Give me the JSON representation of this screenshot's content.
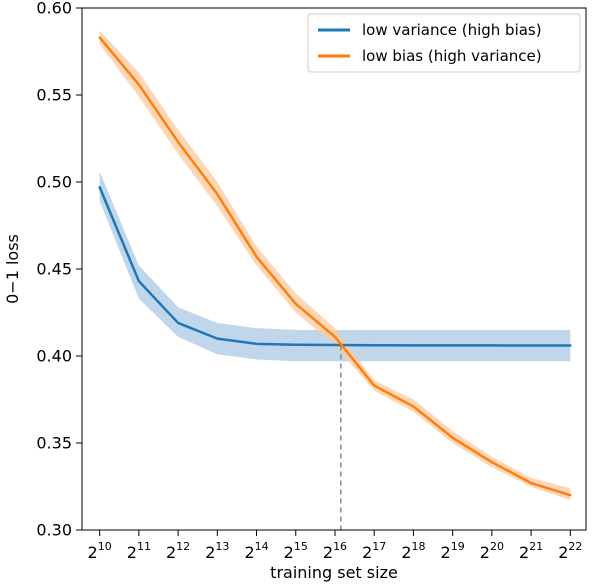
{
  "chart_data": {
    "type": "line",
    "title": "",
    "xlabel": "training set size",
    "ylabel": "0−1 loss",
    "x_tick_base": "2",
    "x_exponents": [
      10,
      11,
      12,
      13,
      14,
      15,
      16,
      17,
      18,
      19,
      20,
      21,
      22
    ],
    "xlim": [
      9.55,
      22.4
    ],
    "ylim": [
      0.3,
      0.6
    ],
    "y_ticks": [
      0.3,
      0.35,
      0.4,
      0.45,
      0.5,
      0.55,
      0.6
    ],
    "y_tick_labels": [
      "0.30",
      "0.35",
      "0.40",
      "0.45",
      "0.50",
      "0.55",
      "0.60"
    ],
    "legend_position": "top-right",
    "grid": false,
    "series": [
      {
        "name": "low variance (high bias)",
        "color": "#1f77b4",
        "band_color": "#a9c8e4",
        "x": [
          10,
          11,
          12,
          13,
          14,
          15,
          16,
          17,
          18,
          19,
          20,
          21,
          22
        ],
        "y": [
          0.497,
          0.443,
          0.419,
          0.41,
          0.407,
          0.4065,
          0.4063,
          0.4062,
          0.4061,
          0.4061,
          0.4061,
          0.406,
          0.406
        ],
        "lower": [
          0.489,
          0.433,
          0.411,
          0.401,
          0.398,
          0.397,
          0.397,
          0.397,
          0.397,
          0.397,
          0.397,
          0.397,
          0.397
        ],
        "upper": [
          0.506,
          0.452,
          0.428,
          0.419,
          0.416,
          0.415,
          0.415,
          0.415,
          0.415,
          0.415,
          0.415,
          0.415,
          0.415
        ]
      },
      {
        "name": "low bias (high variance)",
        "color": "#ff7f0e",
        "band_color": "#fcc9a0",
        "x": [
          10,
          11,
          12,
          13,
          14,
          15,
          16,
          17,
          18,
          19,
          20,
          21,
          22
        ],
        "y": [
          0.583,
          0.556,
          0.523,
          0.493,
          0.457,
          0.43,
          0.411,
          0.383,
          0.371,
          0.353,
          0.339,
          0.327,
          0.32
        ],
        "lower": [
          0.579,
          0.549,
          0.516,
          0.486,
          0.452,
          0.425,
          0.406,
          0.38,
          0.368,
          0.35,
          0.336,
          0.325,
          0.317
        ],
        "upper": [
          0.587,
          0.563,
          0.53,
          0.5,
          0.463,
          0.436,
          0.416,
          0.386,
          0.375,
          0.357,
          0.342,
          0.33,
          0.324
        ]
      }
    ],
    "crossover_line": {
      "x": 16.15,
      "y": 0.406,
      "color": "#888888",
      "style": "dashed"
    }
  }
}
